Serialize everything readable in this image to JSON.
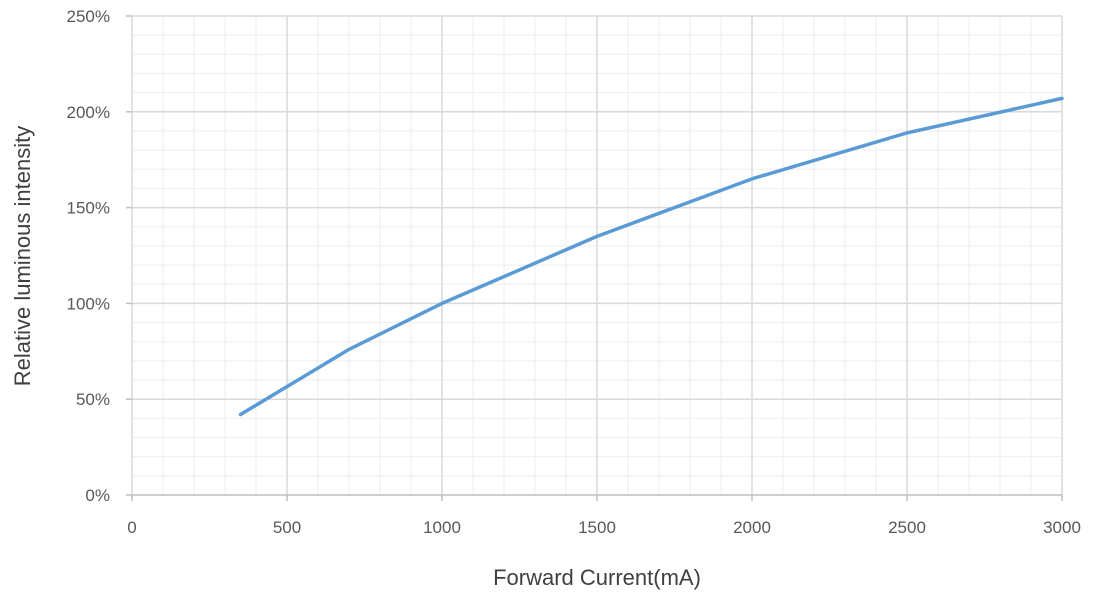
{
  "chart_data": {
    "type": "line",
    "title": "",
    "xlabel": "Forward Current(mA)",
    "ylabel": "Relative luminous intensity",
    "xlim": [
      0,
      3000
    ],
    "ylim": [
      0,
      250
    ],
    "x_ticks": [
      0,
      500,
      1000,
      1500,
      2000,
      2500,
      3000
    ],
    "x_tick_labels": [
      "0",
      "500",
      "1000",
      "1500",
      "2000",
      "2500",
      "3000"
    ],
    "y_ticks": [
      0,
      50,
      100,
      150,
      200,
      250
    ],
    "y_tick_labels": [
      "0%",
      "50%",
      "100%",
      "150%",
      "200%",
      "250%"
    ],
    "grid": true,
    "minor_grid": true,
    "legend": false,
    "series": [
      {
        "color": "#5b9bd5",
        "x": [
          350,
          700,
          1000,
          1500,
          2000,
          2500,
          3000
        ],
        "y": [
          42,
          76,
          100,
          135,
          165,
          189,
          207
        ]
      }
    ]
  }
}
